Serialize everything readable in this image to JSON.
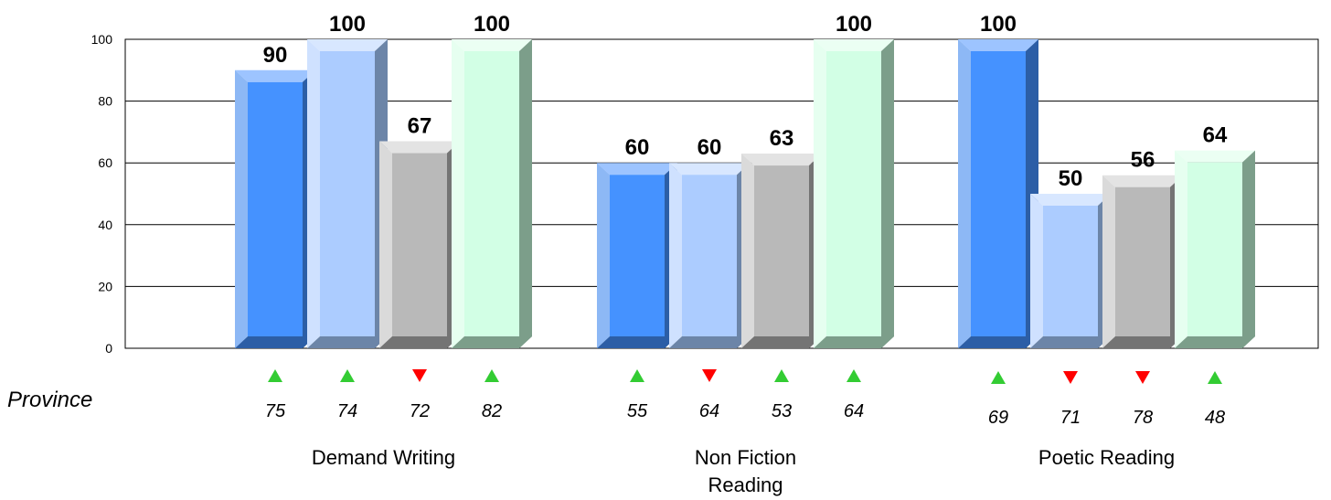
{
  "chart_data": {
    "type": "bar",
    "title": "",
    "xlabel": "",
    "ylabel": "",
    "ylim": [
      0,
      100
    ],
    "yticks": [
      "0",
      "20",
      "40",
      "60",
      "80",
      "100"
    ],
    "grid": true,
    "categories": [
      [
        "Demand Writing"
      ],
      [
        "Non Fiction",
        "Reading"
      ],
      [
        "Poetic Reading"
      ]
    ],
    "series": [
      {
        "values": [
          90,
          60,
          100
        ],
        "colors": {
          "front": "#4592FF",
          "top": "#9DC4FF",
          "side": "#2C5EA6",
          "edge": "#8DB8F5"
        }
      },
      {
        "values": [
          100,
          60,
          50
        ],
        "colors": {
          "front": "#ACCCFF",
          "top": "#D8E7FF",
          "side": "#6C85A8",
          "edge": "#CFE1FF"
        }
      },
      {
        "values": [
          67,
          63,
          56
        ],
        "colors": {
          "front": "#B9B9B9",
          "top": "#E3E3E3",
          "side": "#747474",
          "edge": "#DADADA"
        }
      },
      {
        "values": [
          100,
          100,
          64
        ],
        "colors": {
          "front": "#D2FFE5",
          "top": "#EBFFF3",
          "side": "#7C9E8A",
          "edge": "#E6FFF0"
        }
      }
    ],
    "value_labels": [
      [
        "90",
        "100",
        "67",
        "100"
      ],
      [
        "60",
        "60",
        "63",
        "100"
      ],
      [
        "100",
        "50",
        "56",
        "64"
      ]
    ],
    "province_label": "Province",
    "province": {
      "values": [
        [
          "75",
          "74",
          "72",
          "82"
        ],
        [
          "55",
          "64",
          "53",
          "64"
        ],
        [
          "69",
          "71",
          "78",
          "48"
        ]
      ],
      "trend": [
        [
          "up",
          "up",
          "down",
          "up"
        ],
        [
          "up",
          "down",
          "up",
          "up"
        ],
        [
          "up",
          "down",
          "down",
          "up"
        ]
      ]
    },
    "trend_colors": {
      "up": "#33CC33",
      "down": "#FF0000"
    }
  }
}
